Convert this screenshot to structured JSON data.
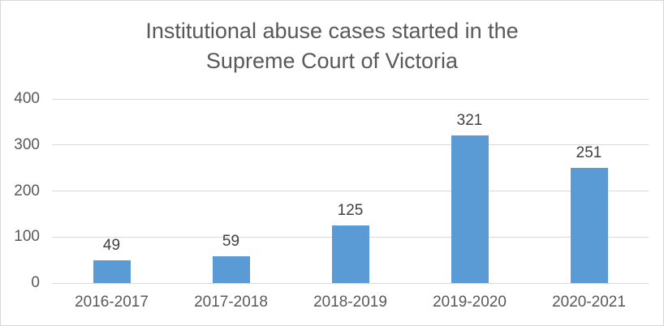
{
  "window": {
    "background": "#ffffff",
    "border_color": "#d7d7d7"
  },
  "chart_data": {
    "type": "bar",
    "title": "Institutional abuse cases started in the Supreme Court of Victoria",
    "title_lines": [
      "Institutional abuse cases started in the",
      "Supreme Court of Victoria"
    ],
    "categories": [
      "2016-2017",
      "2017-2018",
      "2018-2019",
      "2019-2020",
      "2020-2021"
    ],
    "values": [
      49,
      59,
      125,
      321,
      251
    ],
    "data_labels": [
      "49",
      "59",
      "125",
      "321",
      "251"
    ],
    "xlabel": "",
    "ylabel": "",
    "yticks": [
      0,
      100,
      200,
      300,
      400
    ],
    "ylim": [
      0,
      400
    ],
    "grid": "horizontal",
    "legend": "none",
    "colors": {
      "bar": "#5b9bd5",
      "title_text": "#595959",
      "axis_text": "#595959",
      "data_label_text": "#404040",
      "gridline": "#d9d9d9"
    }
  }
}
